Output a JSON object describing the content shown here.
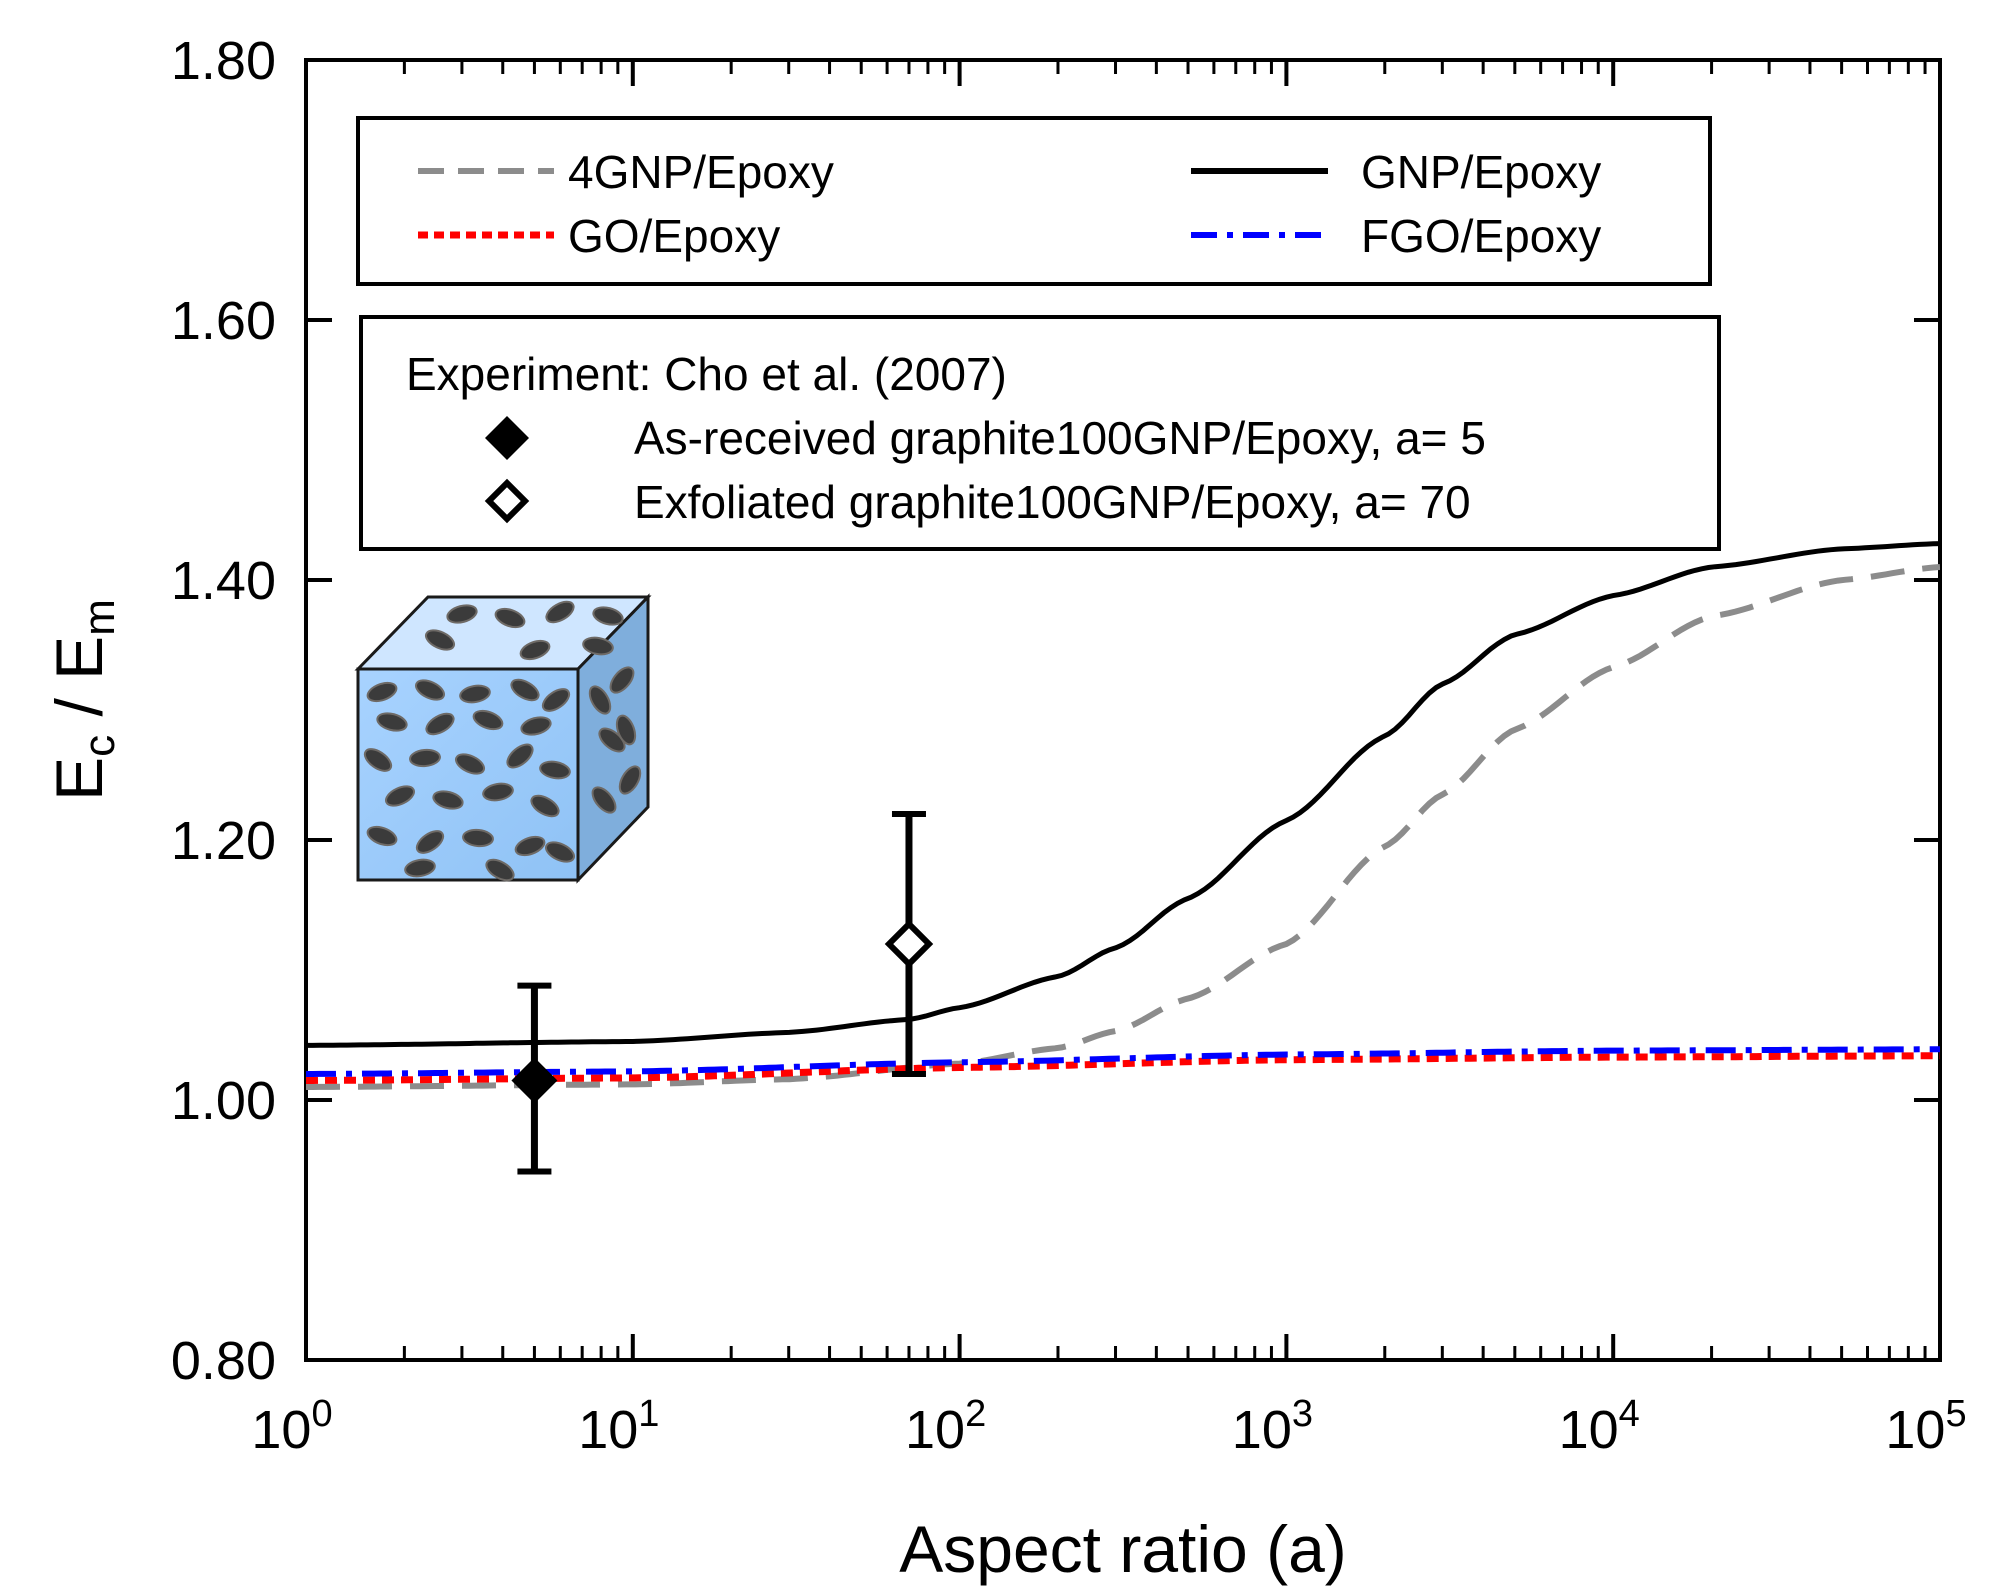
{
  "chart_data": {
    "type": "line",
    "xscale": "log",
    "xlim": [
      1,
      100000
    ],
    "ylim": [
      0.8,
      1.8
    ],
    "xlabel": "Aspect ratio (a)",
    "ylabel_main": "E",
    "ylabel_sub1": "c",
    "ylabel_mid": " / E",
    "ylabel_sub2": "m",
    "x_ticks": [
      {
        "base": "10",
        "exp": "0",
        "value": 1
      },
      {
        "base": "10",
        "exp": "1",
        "value": 10
      },
      {
        "base": "10",
        "exp": "2",
        "value": 100
      },
      {
        "base": "10",
        "exp": "3",
        "value": 1000
      },
      {
        "base": "10",
        "exp": "4",
        "value": 10000
      },
      {
        "base": "10",
        "exp": "5",
        "value": 100000
      }
    ],
    "y_ticks": [
      {
        "label": "0.80",
        "value": 0.8
      },
      {
        "label": "1.00",
        "value": 1.0
      },
      {
        "label": "1.20",
        "value": 1.2
      },
      {
        "label": "1.40",
        "value": 1.4
      },
      {
        "label": "1.60",
        "value": 1.6
      },
      {
        "label": "1.80",
        "value": 1.8
      }
    ],
    "series": [
      {
        "name": "4GNP/Epoxy",
        "color": "#8c8c8c",
        "style": "dashed",
        "x": [
          1,
          10,
          30,
          100,
          200,
          300,
          500,
          1000,
          2000,
          3000,
          5000,
          10000,
          20000,
          50000,
          100000
        ],
        "y": [
          1.01,
          1.012,
          1.016,
          1.028,
          1.04,
          1.053,
          1.078,
          1.12,
          1.195,
          1.235,
          1.285,
          1.333,
          1.372,
          1.4,
          1.41
        ]
      },
      {
        "name": "GNP/Epoxy",
        "color": "#000000",
        "style": "solid",
        "x": [
          1,
          10,
          30,
          70,
          100,
          200,
          300,
          500,
          1000,
          2000,
          3000,
          5000,
          10000,
          20000,
          50000,
          100000
        ],
        "y": [
          1.042,
          1.045,
          1.052,
          1.062,
          1.071,
          1.095,
          1.117,
          1.155,
          1.215,
          1.28,
          1.32,
          1.358,
          1.388,
          1.41,
          1.424,
          1.428
        ]
      },
      {
        "name": "GO/Epoxy",
        "color": "#ff0000",
        "style": "dotted",
        "x": [
          1,
          10,
          100,
          1000,
          10000,
          100000
        ],
        "y": [
          1.015,
          1.017,
          1.025,
          1.031,
          1.033,
          1.034
        ]
      },
      {
        "name": "FGO/Epoxy",
        "color": "#0000ff",
        "style": "dashdot",
        "x": [
          1,
          10,
          100,
          1000,
          10000,
          100000
        ],
        "y": [
          1.02,
          1.022,
          1.029,
          1.035,
          1.038,
          1.039
        ]
      }
    ],
    "experiment": {
      "title": "Experiment: Cho et al. (2007)",
      "points": [
        {
          "label": "As-received graphite100GNP/Epoxy, a= 5",
          "x": 5,
          "y": 1.015,
          "err_low": 0.945,
          "err_high": 1.088,
          "marker": "filled-diamond"
        },
        {
          "label": "Exfoliated graphite100GNP/Epoxy, a= 70",
          "x": 70,
          "y": 1.12,
          "err_low": 1.02,
          "err_high": 1.22,
          "marker": "open-diamond"
        }
      ]
    },
    "legend_position": "top-left",
    "inset": "cube with randomly oriented platelets"
  }
}
